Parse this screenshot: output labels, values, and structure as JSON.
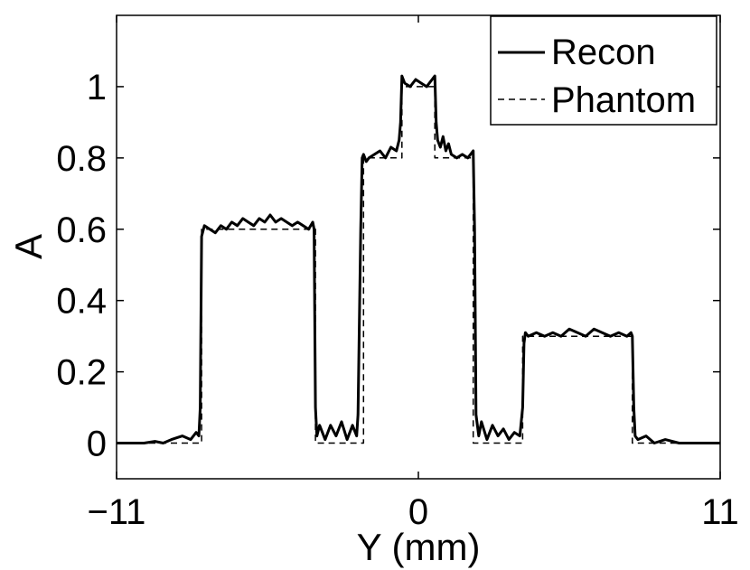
{
  "chart_data": {
    "type": "line",
    "title": "",
    "xlabel": "Y (mm)",
    "ylabel": "A",
    "xlim": [
      -11,
      11
    ],
    "ylim": [
      -0.1,
      1.2
    ],
    "xticks": [
      -11,
      0,
      11
    ],
    "xtick_labels": [
      "−11",
      "0",
      "11"
    ],
    "yticks": [
      0,
      0.2,
      0.4,
      0.6,
      0.8,
      1
    ],
    "ytick_labels": [
      "0",
      "0.2",
      "0.4",
      "0.6",
      "0.8",
      "1"
    ],
    "grid": false,
    "legend_position": "top-right",
    "series": [
      {
        "name": "Recon",
        "style": "solid",
        "color": "#000000",
        "x": [
          -11.0,
          -10.0,
          -9.6,
          -9.3,
          -9.0,
          -8.6,
          -8.3,
          -8.1,
          -8.0,
          -7.95,
          -7.9,
          -7.8,
          -7.6,
          -7.4,
          -7.2,
          -7.0,
          -6.8,
          -6.6,
          -6.4,
          -6.2,
          -6.0,
          -5.8,
          -5.6,
          -5.4,
          -5.2,
          -5.0,
          -4.8,
          -4.6,
          -4.4,
          -4.2,
          -4.0,
          -3.85,
          -3.8,
          -3.75,
          -3.7,
          -3.6,
          -3.4,
          -3.2,
          -3.0,
          -2.8,
          -2.6,
          -2.4,
          -2.25,
          -2.2,
          -2.1,
          -2.05,
          -2.0,
          -1.9,
          -1.8,
          -1.6,
          -1.4,
          -1.2,
          -1.0,
          -0.8,
          -0.7,
          -0.65,
          -0.6,
          -0.5,
          -0.3,
          -0.1,
          0.1,
          0.3,
          0.5,
          0.6,
          0.65,
          0.7,
          0.8,
          0.9,
          1.0,
          1.1,
          1.2,
          1.4,
          1.6,
          1.8,
          2.0,
          2.05,
          2.1,
          2.2,
          2.3,
          2.5,
          2.7,
          2.9,
          3.1,
          3.3,
          3.5,
          3.7,
          3.8,
          3.85,
          3.9,
          4.0,
          4.3,
          4.6,
          4.9,
          5.2,
          5.5,
          5.8,
          6.1,
          6.4,
          6.7,
          7.0,
          7.3,
          7.6,
          7.75,
          7.8,
          7.85,
          7.9,
          8.0,
          8.3,
          8.6,
          9.0,
          9.5,
          10.0,
          11.0
        ],
        "y": [
          0.0,
          0.0,
          0.005,
          0.0,
          0.01,
          0.02,
          0.01,
          0.03,
          0.02,
          0.1,
          0.58,
          0.61,
          0.6,
          0.59,
          0.61,
          0.6,
          0.62,
          0.61,
          0.63,
          0.62,
          0.61,
          0.63,
          0.62,
          0.64,
          0.62,
          0.63,
          0.62,
          0.61,
          0.62,
          0.61,
          0.6,
          0.62,
          0.6,
          0.1,
          0.02,
          0.05,
          0.01,
          0.05,
          0.02,
          0.06,
          0.01,
          0.05,
          0.02,
          0.08,
          0.6,
          0.8,
          0.81,
          0.79,
          0.8,
          0.81,
          0.82,
          0.8,
          0.83,
          0.82,
          0.85,
          0.9,
          1.03,
          1.01,
          1.0,
          1.02,
          1.01,
          1.0,
          1.02,
          1.03,
          0.9,
          0.85,
          0.83,
          0.86,
          0.82,
          0.84,
          0.81,
          0.8,
          0.81,
          0.8,
          0.82,
          0.6,
          0.08,
          0.02,
          0.06,
          0.01,
          0.05,
          0.02,
          0.04,
          0.01,
          0.03,
          0.02,
          0.1,
          0.28,
          0.31,
          0.3,
          0.31,
          0.3,
          0.31,
          0.3,
          0.32,
          0.31,
          0.3,
          0.32,
          0.31,
          0.3,
          0.31,
          0.3,
          0.31,
          0.3,
          0.1,
          0.02,
          0.01,
          0.02,
          0.0,
          0.01,
          0.0,
          0.0,
          0.0
        ]
      },
      {
        "name": "Phantom",
        "style": "dashed",
        "color": "#000000",
        "x": [
          -11,
          -7.9,
          -7.9,
          -3.75,
          -3.75,
          -2.0,
          -2.0,
          -0.6,
          -0.6,
          0.6,
          0.6,
          2.0,
          2.0,
          3.8,
          3.8,
          7.8,
          7.8,
          11
        ],
        "y": [
          0,
          0,
          0.6,
          0.6,
          0,
          0,
          0.8,
          0.8,
          1.0,
          1.0,
          0.8,
          0.8,
          0,
          0,
          0.3,
          0.3,
          0,
          0
        ]
      }
    ]
  }
}
